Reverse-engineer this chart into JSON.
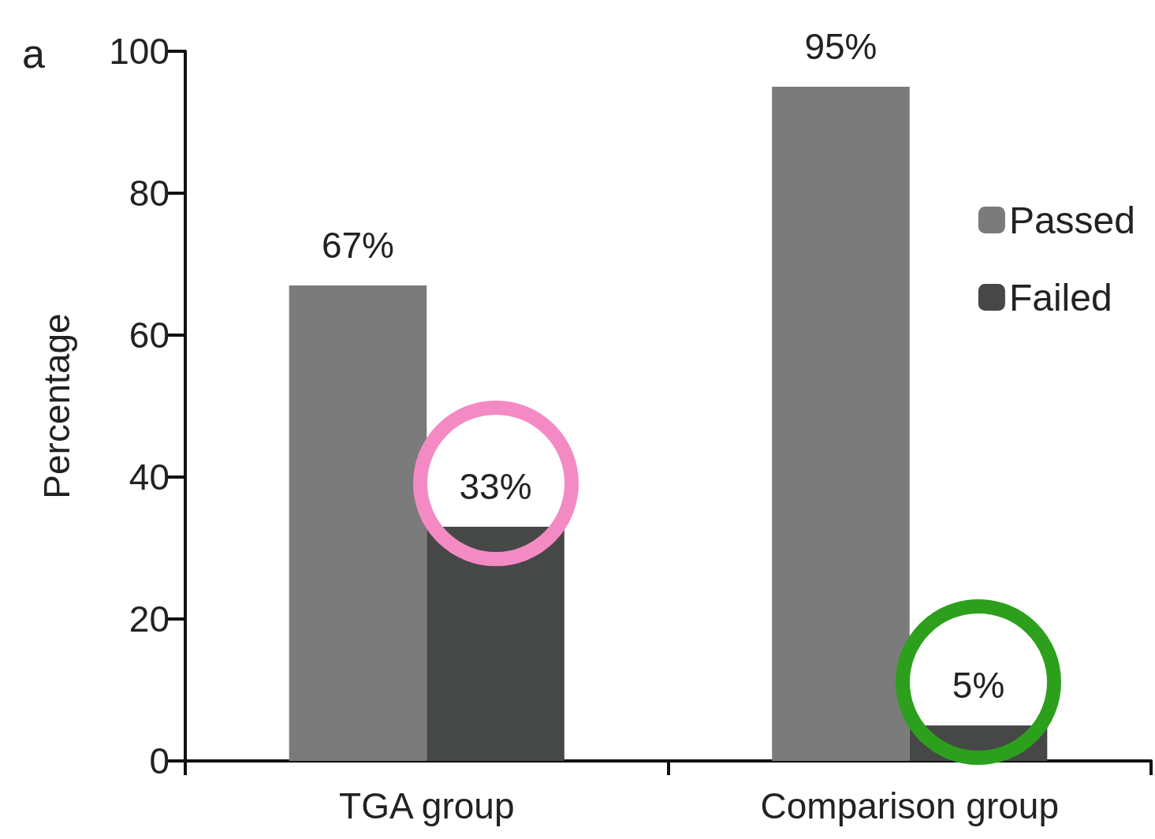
{
  "chart_data": {
    "type": "bar",
    "ylabel": "Percentage",
    "annotations": [
      "a"
    ],
    "categories": [
      "TGA group",
      "Comparison group"
    ],
    "series": [
      {
        "name": "Passed",
        "color": "#7a7b7a",
        "values": [
          67,
          95
        ],
        "value_labels": [
          "67%",
          "95%"
        ]
      },
      {
        "name": "Failed",
        "color": "#464847",
        "values": [
          33,
          5
        ],
        "value_labels": [
          "33%",
          "5%"
        ]
      }
    ],
    "ylim": [
      0,
      100
    ],
    "yticks": [
      0,
      20,
      40,
      60,
      80,
      100
    ],
    "grid": false,
    "legend": "right"
  }
}
